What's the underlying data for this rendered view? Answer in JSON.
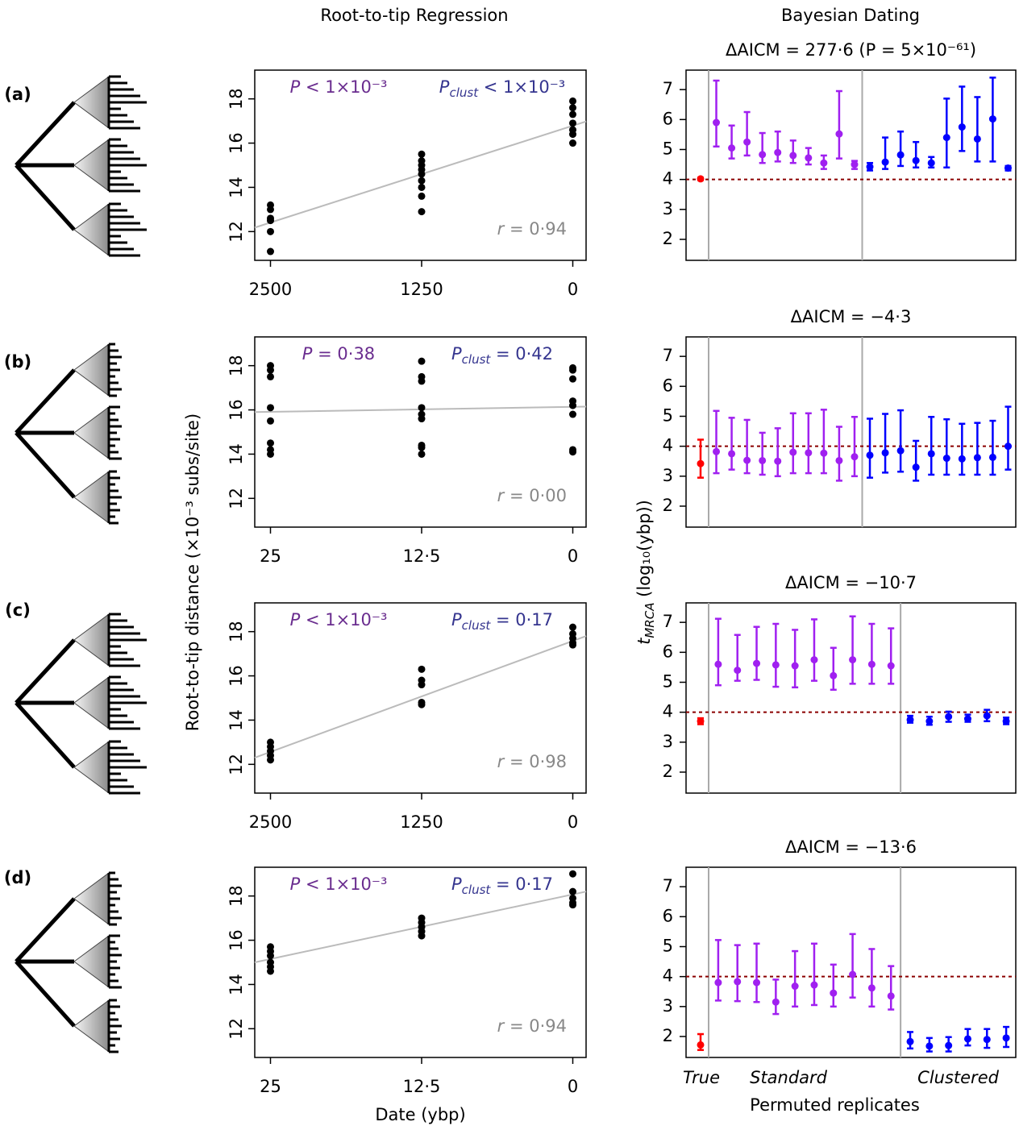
{
  "column_titles": [
    "Root-to-tip Regression",
    "Bayesian Dating"
  ],
  "panel_labels": [
    "(a)",
    "(b)",
    "(c)",
    "(d)"
  ],
  "regression_ylabel": "Root-to-tip distance (×10⁻³ subs/site)",
  "dating_ylabel": {
    "symbol": "t",
    "sub": "MRCA",
    "text": " (log₁₀(ybp))"
  },
  "chart_data": [
    {
      "type": "scatter",
      "annotations": {
        "p": {
          "symbol": "P",
          "text": " < 1×10⁻³"
        },
        "p_clust": {
          "symbol": "P",
          "sub": "clust",
          "text": " < 1×10⁻³"
        },
        "r": {
          "symbol": "r",
          "text": " = 0·94"
        }
      },
      "x": [
        2500,
        2500,
        2500,
        2500,
        2500,
        2500,
        1250,
        1250,
        1250,
        1250,
        1250,
        1250,
        1250,
        1250,
        1250,
        0,
        0,
        0,
        0,
        0,
        0,
        0
      ],
      "y": [
        13.2,
        13.0,
        12.6,
        12.5,
        12.0,
        11.1,
        15.5,
        15.2,
        15.0,
        14.8,
        14.6,
        14.3,
        14.0,
        13.6,
        12.9,
        17.9,
        17.6,
        17.3,
        16.9,
        16.6,
        16.4,
        16.0
      ],
      "color": "#000000",
      "trend": {
        "x": [
          2630,
          -110
        ],
        "y": [
          12.18,
          16.98
        ]
      },
      "trend_color": "#bbbbbb",
      "xlim": [
        2630,
        -110
      ],
      "ylim": [
        10.7,
        19.3
      ],
      "xticks": [
        2500,
        1250,
        0
      ],
      "yticks": [
        12,
        14,
        16,
        18
      ]
    },
    {
      "type": "errorbar",
      "title": "ΔAICM = 277·6 (P = 5×10⁻⁶¹)",
      "ylim": [
        1.3,
        7.65
      ],
      "yticks": [
        2,
        3,
        4,
        5,
        6,
        7
      ],
      "reference_line": 4,
      "reference_color": "#8b0000",
      "series": [
        {
          "color": "#ff0000",
          "values": [
            4.02
          ],
          "lower": [
            3.98
          ],
          "upper": [
            4.06
          ]
        },
        {
          "color": "#a020f0",
          "values": [
            5.9,
            5.05,
            5.25,
            4.83,
            4.9,
            4.8,
            4.72,
            4.55,
            5.52,
            4.5
          ],
          "lower": [
            5.1,
            4.7,
            4.8,
            4.55,
            4.6,
            4.55,
            4.5,
            4.35,
            4.7,
            4.35
          ],
          "upper": [
            7.3,
            5.8,
            6.25,
            5.55,
            5.6,
            5.3,
            5.05,
            4.8,
            6.95,
            4.62
          ]
        },
        {
          "color": "#0000ff",
          "values": [
            4.42,
            4.58,
            4.82,
            4.63,
            4.55,
            5.4,
            5.75,
            5.35,
            6.02,
            4.38
          ],
          "lower": [
            4.3,
            4.35,
            4.45,
            4.4,
            4.4,
            4.4,
            4.95,
            4.6,
            4.6,
            4.3
          ],
          "upper": [
            4.55,
            5.4,
            5.6,
            5.25,
            4.75,
            6.7,
            7.1,
            6.75,
            7.4,
            4.45
          ]
        }
      ]
    },
    {
      "type": "scatter",
      "annotations": {
        "p": {
          "symbol": "P",
          "text": " = 0·38"
        },
        "p_clust": {
          "symbol": "P",
          "sub": "clust",
          "text": " = 0·42"
        },
        "r": {
          "symbol": "r",
          "text": " = 0·00"
        }
      },
      "x": [
        25,
        25,
        25,
        25,
        25,
        25,
        25,
        25,
        12.5,
        12.5,
        12.5,
        12.5,
        12.5,
        12.5,
        12.5,
        12.5,
        12.5,
        0,
        0,
        0,
        0,
        0,
        0,
        0,
        0
      ],
      "y": [
        18.0,
        17.8,
        17.5,
        16.1,
        15.5,
        14.5,
        14.2,
        14.0,
        18.2,
        17.5,
        17.3,
        16.1,
        15.8,
        15.6,
        14.4,
        14.3,
        14.0,
        17.9,
        17.8,
        17.4,
        16.4,
        16.2,
        15.8,
        14.2,
        14.1
      ],
      "color": "#000000",
      "trend": {
        "x": [
          26.3,
          -1.1
        ],
        "y": [
          15.9,
          16.15
        ]
      },
      "trend_color": "#bbbbbb",
      "xlim": [
        26.3,
        -1.1
      ],
      "ylim": [
        10.7,
        19.3
      ],
      "xticks": [
        25,
        {
          "value": 12.5,
          "label": "12·5"
        },
        0
      ],
      "yticks": [
        12,
        14,
        16,
        18
      ]
    },
    {
      "type": "errorbar",
      "title": "ΔAICM = −4·3",
      "ylim": [
        1.3,
        7.65
      ],
      "yticks": [
        2,
        3,
        4,
        5,
        6,
        7
      ],
      "reference_line": 4,
      "reference_color": "#8b0000",
      "series": [
        {
          "color": "#ff0000",
          "values": [
            3.42
          ],
          "lower": [
            2.95
          ],
          "upper": [
            4.22
          ]
        },
        {
          "color": "#a020f0",
          "values": [
            3.82,
            3.75,
            3.53,
            3.52,
            3.5,
            3.8,
            3.78,
            3.77,
            3.52,
            3.65
          ],
          "lower": [
            3.1,
            3.22,
            3.1,
            3.05,
            3.0,
            3.1,
            3.1,
            3.1,
            2.85,
            3.0
          ],
          "upper": [
            5.18,
            4.95,
            4.88,
            4.45,
            4.6,
            5.1,
            5.1,
            5.22,
            4.65,
            4.98
          ]
        },
        {
          "color": "#0000ff",
          "values": [
            3.7,
            3.78,
            3.85,
            3.3,
            3.75,
            3.6,
            3.58,
            3.62,
            3.63,
            4.0
          ],
          "lower": [
            2.95,
            3.12,
            3.15,
            2.85,
            3.05,
            3.05,
            3.05,
            3.05,
            3.05,
            3.22
          ],
          "upper": [
            4.92,
            5.08,
            5.2,
            4.18,
            4.98,
            4.9,
            4.75,
            4.78,
            4.85,
            5.32
          ]
        }
      ]
    },
    {
      "type": "scatter",
      "annotations": {
        "p": {
          "symbol": "P",
          "text": " < 1×10⁻³"
        },
        "p_clust": {
          "symbol": "P",
          "sub": "clust",
          "text": " = 0·17"
        },
        "r": {
          "symbol": "r",
          "text": " = 0·98"
        }
      },
      "x": [
        2500,
        2500,
        2500,
        2500,
        2500,
        1250,
        1250,
        1250,
        1250,
        1250,
        0,
        0,
        0,
        0,
        0
      ],
      "y": [
        13.0,
        12.8,
        12.6,
        12.4,
        12.2,
        16.3,
        15.8,
        15.6,
        14.8,
        14.7,
        18.2,
        17.9,
        17.7,
        17.5,
        17.4
      ],
      "color": "#000000",
      "trend": {
        "x": [
          2630,
          -110
        ],
        "y": [
          12.3,
          17.8
        ]
      },
      "trend_color": "#bbbbbb",
      "xlim": [
        2630,
        -110
      ],
      "ylim": [
        10.7,
        19.3
      ],
      "xticks": [
        2500,
        1250,
        0
      ],
      "yticks": [
        12,
        14,
        16,
        18
      ]
    },
    {
      "type": "errorbar",
      "title": "ΔAICM = −10·7",
      "ylim": [
        1.3,
        7.65
      ],
      "yticks": [
        2,
        3,
        4,
        5,
        6,
        7
      ],
      "reference_line": 4,
      "reference_color": "#8b0000",
      "series": [
        {
          "color": "#ff0000",
          "values": [
            3.7
          ],
          "lower": [
            3.6
          ],
          "upper": [
            3.8
          ]
        },
        {
          "color": "#a020f0",
          "values": [
            5.6,
            5.4,
            5.63,
            5.58,
            5.55,
            5.75,
            5.22,
            5.75,
            5.6,
            5.55
          ],
          "lower": [
            4.9,
            5.05,
            5.08,
            4.85,
            4.83,
            5.05,
            4.75,
            4.95,
            4.95,
            4.95
          ],
          "upper": [
            7.12,
            6.58,
            6.85,
            6.95,
            6.75,
            7.1,
            6.15,
            7.2,
            6.95,
            6.8
          ]
        },
        {
          "color": "#0000ff",
          "values": [
            3.75,
            3.7,
            3.85,
            3.78,
            3.88,
            3.7
          ],
          "lower": [
            3.65,
            3.58,
            3.68,
            3.68,
            3.7,
            3.6
          ],
          "upper": [
            3.88,
            3.85,
            4.02,
            3.92,
            4.08,
            3.82
          ]
        }
      ]
    },
    {
      "type": "scatter",
      "xlabel": "Date (ybp)",
      "annotations": {
        "p": {
          "symbol": "P",
          "text": " < 1×10⁻³"
        },
        "p_clust": {
          "symbol": "P",
          "sub": "clust",
          "text": " = 0·17"
        },
        "r": {
          "symbol": "r",
          "text": " = 0·94"
        }
      },
      "x": [
        25,
        25,
        25,
        25,
        25,
        25,
        12.5,
        12.5,
        12.5,
        12.5,
        12.5,
        0,
        0,
        0,
        0,
        0
      ],
      "y": [
        15.7,
        15.5,
        15.3,
        15.0,
        14.8,
        14.6,
        17.0,
        16.8,
        16.6,
        16.4,
        16.2,
        19.0,
        18.2,
        17.9,
        17.7,
        17.6
      ],
      "color": "#000000",
      "trend": {
        "x": [
          26.3,
          -1.1
        ],
        "y": [
          15.0,
          18.2
        ]
      },
      "trend_color": "#bbbbbb",
      "xlim": [
        26.3,
        -1.1
      ],
      "ylim": [
        10.7,
        19.3
      ],
      "xticks": [
        25,
        {
          "value": 12.5,
          "label": "12·5"
        },
        0
      ],
      "yticks": [
        12,
        14,
        16,
        18
      ]
    },
    {
      "type": "errorbar",
      "title": "ΔAICM = −13·6",
      "xlabel": "Permuted replicates",
      "ylim": [
        1.3,
        7.65
      ],
      "yticks": [
        2,
        3,
        4,
        5,
        6,
        7
      ],
      "reference_line": 4,
      "reference_color": "#8b0000",
      "series": [
        {
          "name": "True",
          "color": "#ff0000",
          "values": [
            1.72
          ],
          "lower": [
            1.55
          ],
          "upper": [
            2.08
          ]
        },
        {
          "name": "Standard",
          "color": "#a020f0",
          "values": [
            3.8,
            3.83,
            3.8,
            3.15,
            3.68,
            3.72,
            3.45,
            4.07,
            3.62,
            3.35
          ],
          "lower": [
            3.2,
            3.18,
            3.15,
            2.75,
            3.0,
            3.05,
            3.0,
            3.3,
            3.0,
            2.9
          ],
          "upper": [
            5.22,
            5.05,
            5.1,
            3.9,
            4.85,
            5.1,
            4.4,
            5.42,
            4.92,
            4.35
          ]
        },
        {
          "name": "Clustered",
          "color": "#0000ff",
          "values": [
            1.83,
            1.68,
            1.7,
            1.92,
            1.9,
            1.95
          ],
          "lower": [
            1.6,
            1.5,
            1.5,
            1.7,
            1.62,
            1.65
          ],
          "upper": [
            2.15,
            1.95,
            1.98,
            2.25,
            2.25,
            2.32
          ]
        }
      ]
    }
  ]
}
